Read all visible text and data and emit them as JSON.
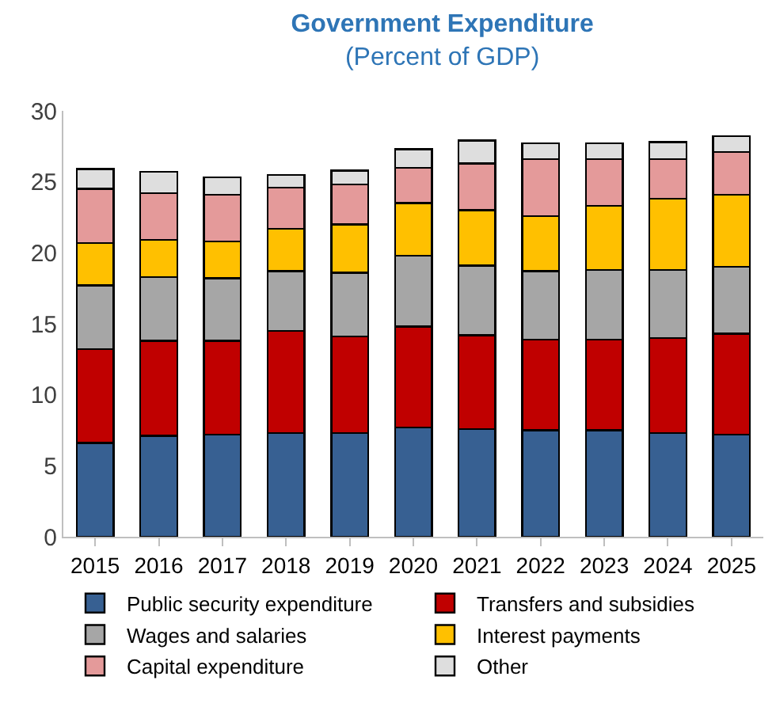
{
  "chart_data": {
    "type": "bar",
    "title": "Government Expenditure",
    "subtitle": "(Percent of GDP)",
    "stacked": true,
    "categories": [
      "2015",
      "2016",
      "2017",
      "2018",
      "2019",
      "2020",
      "2021",
      "2022",
      "2023",
      "2024",
      "2025"
    ],
    "series": [
      {
        "name": "Public security expenditure",
        "color": "#376092",
        "values": [
          6.6,
          7.1,
          7.2,
          7.3,
          7.3,
          7.7,
          7.6,
          7.5,
          7.5,
          7.3,
          7.2
        ]
      },
      {
        "name": "Transfers and subsidies",
        "color": "#c00000",
        "values": [
          6.6,
          6.7,
          6.6,
          7.2,
          6.8,
          7.1,
          6.6,
          6.4,
          6.4,
          6.7,
          7.1
        ]
      },
      {
        "name": "Wages and salaries",
        "color": "#a6a6a6",
        "values": [
          4.5,
          4.5,
          4.4,
          4.2,
          4.5,
          5.0,
          4.9,
          4.8,
          4.9,
          4.8,
          4.7
        ]
      },
      {
        "name": "Interest payments",
        "color": "#ffc000",
        "values": [
          3.0,
          2.6,
          2.6,
          3.0,
          3.4,
          3.7,
          3.9,
          3.9,
          4.5,
          5.0,
          5.1
        ]
      },
      {
        "name": "Capital expenditure",
        "color": "#e49a9a",
        "values": [
          3.8,
          3.3,
          3.3,
          2.9,
          2.8,
          2.5,
          3.3,
          4.0,
          3.3,
          2.8,
          3.0
        ]
      },
      {
        "name": "Other",
        "color": "#dedede",
        "values": [
          1.4,
          1.5,
          1.2,
          0.9,
          1.0,
          1.3,
          1.6,
          1.1,
          1.1,
          1.2,
          1.1
        ]
      }
    ],
    "ylim": [
      0,
      30
    ],
    "yticks": [
      0,
      5,
      10,
      15,
      20,
      25,
      30
    ],
    "grid": false,
    "legend": "bottom"
  }
}
